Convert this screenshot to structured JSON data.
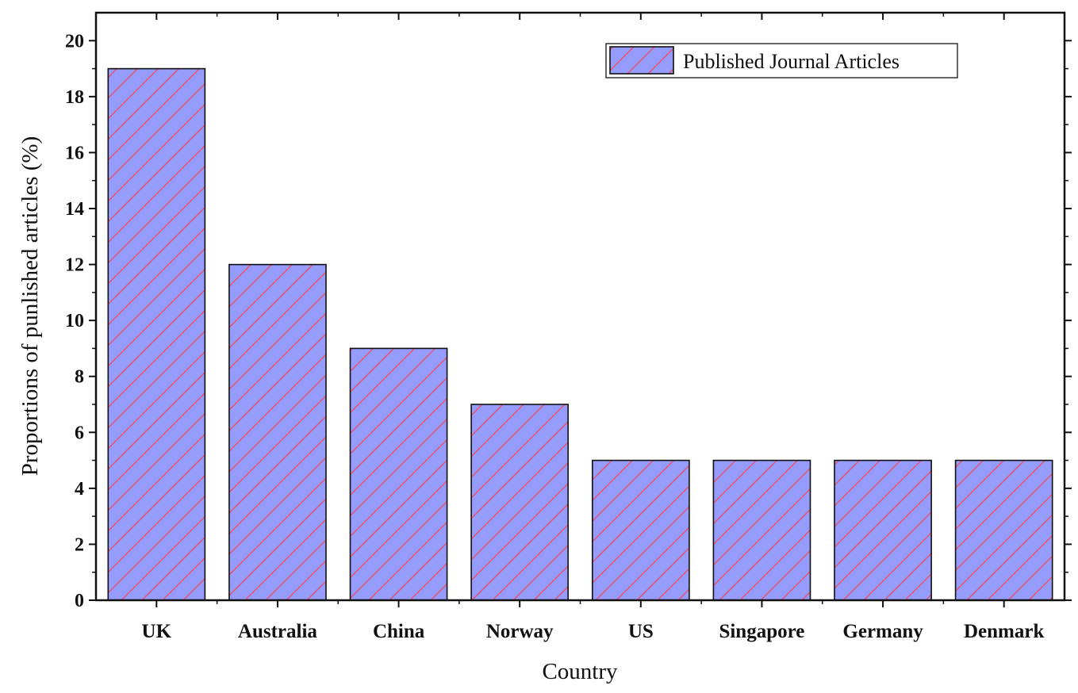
{
  "chart_data": {
    "type": "bar",
    "title": "",
    "xlabel": "Country",
    "ylabel": "Proportions of punlished articles (%)",
    "categories": [
      "UK",
      "Australia",
      "China",
      "Norway",
      "US",
      "Singapore",
      "Germany",
      "Denmark"
    ],
    "series": [
      {
        "name": "Published Journal Articles",
        "values": [
          19,
          12,
          9,
          7,
          5,
          5,
          5,
          5
        ]
      }
    ],
    "ylim": [
      0,
      21
    ],
    "yticks": [
      0,
      2,
      4,
      6,
      8,
      10,
      12,
      14,
      16,
      18,
      20
    ],
    "grid": false,
    "legend": {
      "position": "top-right"
    },
    "colors": {
      "bar_fill": "#959cfb",
      "hatch": "#e8506a",
      "edge": "#111111"
    }
  }
}
